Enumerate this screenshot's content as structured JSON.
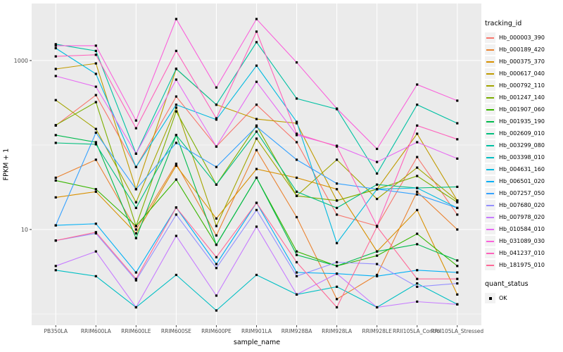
{
  "ui": {
    "legend": {
      "tracking_title": "tracking_id",
      "quant_title": "quant_status",
      "quant_items": [
        {
          "label": "OK",
          "key_shape": "filled-square-icon",
          "key_color": "#000000"
        }
      ]
    },
    "colors": {
      "panel_bg": "#EBEBEB",
      "grid_major": "#FFFFFF",
      "grid_minor": "#FFFFFF",
      "axis_text": "#4D4D4D",
      "tick_mark": "#333333",
      "legend_key_bg": "#F2F2F2",
      "point": "#000000"
    }
  },
  "chart_data": {
    "type": "line",
    "title": "",
    "xlabel": "sample_name",
    "ylabel": "FPKM + 1",
    "yscale": "log10",
    "legend_position": "right",
    "grid": "on",
    "x": [
      "PB350LA",
      "RRIM600LA",
      "RRIM600LE",
      "RRIM600SE",
      "RRIM600PE",
      "RRIM901LA",
      "RRIM928BA",
      "RRIM928LA",
      "RRIM928LE",
      "RRII105LA_Control",
      "RRII105LA_Stressed"
    ],
    "y_axis": {
      "breaks": [
        {
          "value": 1000,
          "label": "1000"
        },
        {
          "value": 10,
          "label": "10"
        }
      ],
      "minor_breaks": [
        100,
        1
      ],
      "range": [
        0.75,
        4500
      ]
    },
    "point_marker": {
      "shape": "filled-square",
      "color": "#000000",
      "meaning": "quant_status OK"
    },
    "series": [
      {
        "name": "Hb_000003_390",
        "color": "#F8766D",
        "values": [
          170,
          390,
          55,
          375,
          96,
          300,
          108,
          15,
          11,
          72,
          15
        ]
      },
      {
        "name": "Hb_000189_420",
        "color": "#EA8331",
        "values": [
          41,
          67,
          10,
          60,
          8.5,
          87,
          14,
          1.5,
          2.9,
          28,
          10
        ]
      },
      {
        "name": "Hb_000375_370",
        "color": "#D89000",
        "values": [
          24,
          28,
          9,
          57,
          13.5,
          52,
          41,
          30,
          5.5,
          17,
          1.7
        ]
      },
      {
        "name": "Hb_000617_040",
        "color": "#C09B00",
        "values": [
          795,
          925,
          30,
          795,
          300,
          203,
          181,
          22,
          30,
          136,
          22
        ]
      },
      {
        "name": "Hb_000792_110",
        "color": "#A3A500",
        "values": [
          340,
          155,
          21,
          277,
          11,
          119,
          25,
          67,
          23,
          54,
          22
        ]
      },
      {
        "name": "Hb_001247_140",
        "color": "#7CAE00",
        "values": [
          172,
          322,
          11,
          250,
          34,
          170,
          25,
          22,
          30,
          43,
          21
        ]
      },
      {
        "name": "Hb_001907_060",
        "color": "#39B600",
        "values": [
          38,
          30,
          11,
          39,
          6.6,
          41,
          5.5,
          3.7,
          4.9,
          8.9,
          3.7
        ]
      },
      {
        "name": "Hb_001935_190",
        "color": "#00BB4E",
        "values": [
          131,
          108,
          7.9,
          131,
          6.6,
          41,
          5.0,
          3.7,
          5.5,
          6.7,
          4.3
        ]
      },
      {
        "name": "Hb_002609_010",
        "color": "#00BF7D",
        "values": [
          106,
          102,
          18,
          131,
          34,
          144,
          28,
          18,
          34,
          31,
          32
        ]
      },
      {
        "name": "Hb_003299_080",
        "color": "#00C1A3",
        "values": [
          1560,
          1300,
          79,
          800,
          300,
          1650,
          355,
          266,
          46,
          300,
          181
        ]
      },
      {
        "name": "Hb_003398_010",
        "color": "#00BFC4",
        "values": [
          3.3,
          2.8,
          1.2,
          2.9,
          1.1,
          2.9,
          1.7,
          2.1,
          1.2,
          2.3,
          1.3
        ]
      },
      {
        "name": "Hb_004631_160",
        "color": "#00BAE0",
        "values": [
          1400,
          695,
          55,
          300,
          200,
          870,
          188,
          6.9,
          30,
          31,
          18
        ]
      },
      {
        "name": "Hb_006501_020",
        "color": "#00B0F6",
        "values": [
          11.2,
          11.7,
          3.1,
          18.2,
          3.9,
          20.7,
          3.1,
          3.0,
          2.8,
          3.3,
          3.1
        ]
      },
      {
        "name": "Hb_007257_050",
        "color": "#35A2FF",
        "values": [
          11.2,
          140,
          30,
          106,
          55,
          165,
          67,
          35,
          30,
          26,
          18
        ]
      },
      {
        "name": "Hb_007680_020",
        "color": "#9590FF",
        "values": [
          7.4,
          9,
          2.5,
          15,
          3.5,
          17,
          2.8,
          4.1,
          3.9,
          2.1,
          2.3
        ]
      },
      {
        "name": "Hb_007978_020",
        "color": "#C77CFF",
        "values": [
          3.7,
          5.5,
          1.2,
          8.4,
          1.65,
          10.8,
          1.7,
          3.0,
          1.2,
          1.4,
          1.3
        ]
      },
      {
        "name": "Hb_010584_010",
        "color": "#E76BF3",
        "values": [
          656,
          490,
          79,
          595,
          96,
          560,
          131,
          98,
          63,
          108,
          69
        ]
      },
      {
        "name": "Hb_031089_030",
        "color": "#FA62DB",
        "values": [
          1500,
          1500,
          195,
          3100,
          480,
          3100,
          950,
          270,
          90,
          520,
          335
        ]
      },
      {
        "name": "Hb_041237_010",
        "color": "#FF62BC",
        "values": [
          1120,
          1170,
          158,
          1300,
          207,
          2200,
          136,
          96,
          11,
          170,
          117
        ]
      },
      {
        "name": "Hb_181975_010",
        "color": "#FF6A98",
        "values": [
          7.4,
          9.3,
          2.6,
          18.2,
          4.7,
          20.7,
          4.1,
          1.2,
          10.8,
          2.6,
          2.6
        ]
      }
    ]
  }
}
